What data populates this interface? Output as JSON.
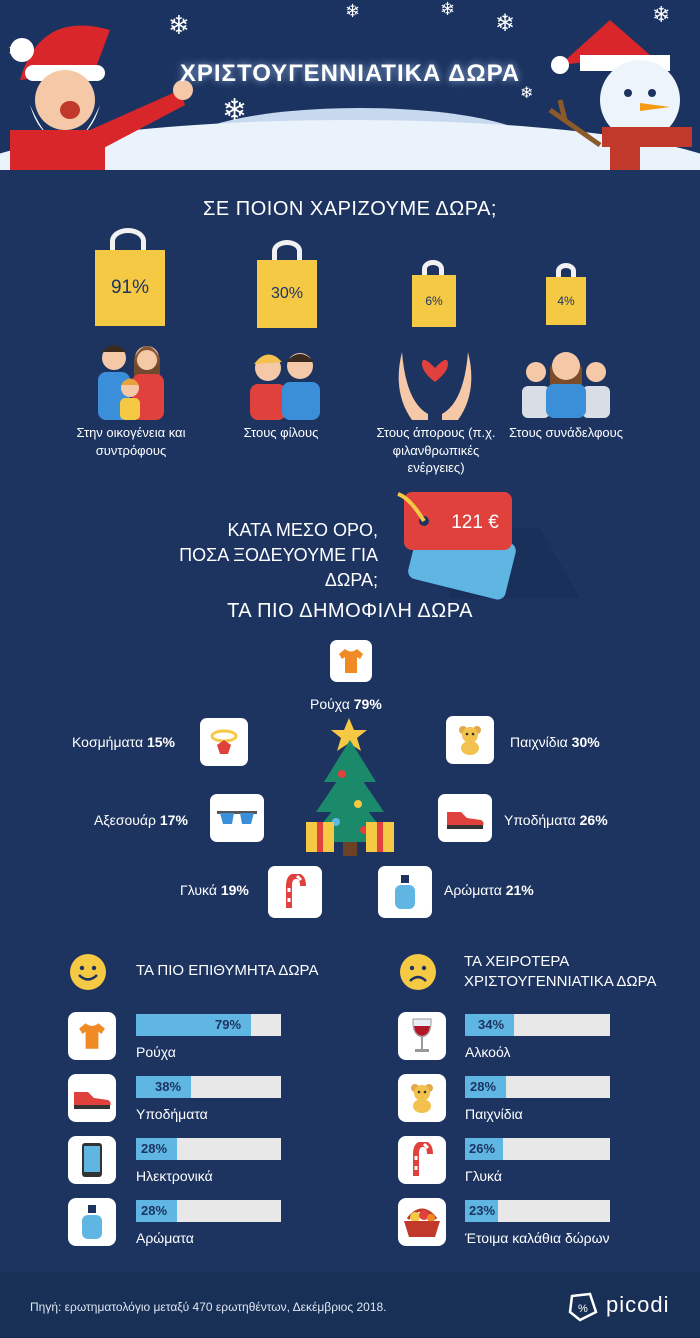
{
  "title": "ΧΡΙΣΤΟΥΓΕΝΝΙΑΤΙΚΑ ΔΩΡΑ",
  "who": {
    "heading": "ΣΕ ΠΟΙΟΝ ΧΑΡΙΖΟΥΜΕ ΔΩΡΑ;",
    "items": [
      {
        "pct": "91%",
        "label": "Στην οικογένεια και συντρόφους"
      },
      {
        "pct": "30%",
        "label": "Στους φίλους"
      },
      {
        "pct": "6%",
        "label": "Στους άπορους (π.χ. φιλανθρωπικές ενέργειες)"
      },
      {
        "pct": "4%",
        "label": "Στους συνάδελφους"
      }
    ]
  },
  "spend": {
    "line1": "ΚΑΤΑ ΜΕΣΟ ΟΡΟ,",
    "line2": "ΠΟΣΑ ΞΟΔΕΥΟΥΜΕ ΓΙΑ ΔΩΡΑ;",
    "amount": "121 €"
  },
  "popular": {
    "heading": "ΤΑ ΠΙΟ ΔΗΜΟΦΙΛΗ ΔΩΡΑ",
    "items": [
      {
        "name": "Ρούχα",
        "pct": "79%",
        "icon": "tshirt-icon"
      },
      {
        "name": "Κοσμήματα",
        "pct": "15%",
        "icon": "ring-icon"
      },
      {
        "name": "Παιχνίδια",
        "pct": "30%",
        "icon": "teddy-bear-icon"
      },
      {
        "name": "Αξεσουάρ",
        "pct": "17%",
        "icon": "sunglasses-icon"
      },
      {
        "name": "Υποδήματα",
        "pct": "26%",
        "icon": "sneaker-icon"
      },
      {
        "name": "Γλυκά",
        "pct": "19%",
        "icon": "candy-cane-icon"
      },
      {
        "name": "Αρώματα",
        "pct": "21%",
        "icon": "perfume-icon"
      }
    ]
  },
  "wanted": {
    "heading": "ΤΑ ΠΙΟ ΕΠΙΘΥΜΗΤΑ ΔΩΡΑ",
    "items": [
      {
        "name": "Ρούχα",
        "pct": "79%",
        "value": 79,
        "icon": "tshirt-icon"
      },
      {
        "name": "Υποδήματα",
        "pct": "38%",
        "value": 38,
        "icon": "sneaker-icon"
      },
      {
        "name": "Ηλεκτρονικά",
        "pct": "28%",
        "value": 28,
        "icon": "smartphone-icon"
      },
      {
        "name": "Αρώματα",
        "pct": "28%",
        "value": 28,
        "icon": "perfume-icon"
      }
    ]
  },
  "worst": {
    "heading1": "ΤΑ ΧΕΙΡΟΤΕΡΑ",
    "heading2": "ΧΡΙΣΤΟΥΓΕΝΝΙΑΤΙΚΑ ΔΩΡΑ",
    "items": [
      {
        "name": "Αλκοόλ",
        "pct": "34%",
        "value": 34,
        "icon": "wine-glass-icon"
      },
      {
        "name": "Παιχνίδια",
        "pct": "28%",
        "value": 28,
        "icon": "teddy-bear-icon"
      },
      {
        "name": "Γλυκά",
        "pct": "26%",
        "value": 26,
        "icon": "candy-cane-icon"
      },
      {
        "name": "Έτοιμα καλάθια δώρων",
        "pct": "23%",
        "value": 23,
        "icon": "gift-basket-icon"
      }
    ]
  },
  "footer": {
    "source": "Πηγή: ερωτηματολόγιο μεταξύ 470 ερωτηθέντων, Δεκέμβριος 2018.",
    "brand": "picodi"
  }
}
